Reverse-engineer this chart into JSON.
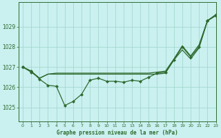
{
  "title": "Graphe pression niveau de la mer (hPa)",
  "bg_color": "#caf0f0",
  "line_color": "#2d6a2d",
  "grid_color": "#9dd4c8",
  "xlim": [
    -0.5,
    23
  ],
  "ylim": [
    1024.3,
    1030.2
  ],
  "yticks": [
    1025,
    1026,
    1027,
    1028,
    1029
  ],
  "xticks": [
    0,
    1,
    2,
    3,
    4,
    5,
    6,
    7,
    8,
    9,
    10,
    11,
    12,
    13,
    14,
    15,
    16,
    17,
    18,
    19,
    20,
    21,
    22,
    23
  ],
  "hours": [
    0,
    1,
    2,
    3,
    4,
    5,
    6,
    7,
    8,
    9,
    10,
    11,
    12,
    13,
    14,
    15,
    16,
    17,
    18,
    19,
    20,
    21,
    22,
    23
  ],
  "line_jagged": [
    1027.0,
    1026.8,
    1026.4,
    1026.1,
    1026.05,
    1025.1,
    1025.3,
    1025.65,
    1026.35,
    1026.45,
    1026.3,
    1026.3,
    1026.25,
    1026.35,
    1026.3,
    1026.5,
    1026.7,
    1026.75,
    1027.35,
    1028.0,
    1027.5,
    1028.0,
    1029.3,
    1029.55
  ],
  "line_upper": [
    1027.0,
    1026.8,
    1026.45,
    1026.65,
    1026.7,
    1026.7,
    1026.7,
    1026.7,
    1026.7,
    1026.7,
    1026.7,
    1026.7,
    1026.7,
    1026.7,
    1026.7,
    1026.7,
    1026.75,
    1026.8,
    1027.4,
    1028.05,
    1027.55,
    1028.1,
    1029.3,
    1029.6
  ],
  "line_mid": [
    1027.0,
    1026.75,
    1026.45,
    1026.65,
    1026.65,
    1026.65,
    1026.65,
    1026.65,
    1026.65,
    1026.65,
    1026.65,
    1026.65,
    1026.65,
    1026.65,
    1026.65,
    1026.65,
    1026.65,
    1026.7,
    1027.35,
    1027.85,
    1027.4,
    1027.95,
    1029.28,
    1029.55
  ]
}
